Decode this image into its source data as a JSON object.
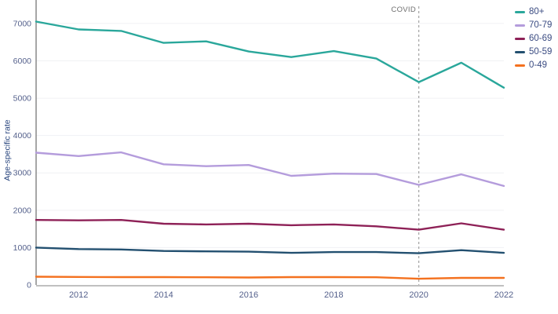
{
  "chart_data": {
    "type": "line",
    "title": "",
    "ylabel": "Age-specific rate",
    "xlabel": "",
    "x": [
      2011,
      2012,
      2013,
      2014,
      2015,
      2016,
      2017,
      2018,
      2019,
      2020,
      2021,
      2022
    ],
    "xlim": [
      2011,
      2022
    ],
    "ylim": [
      0,
      7460
    ],
    "x_ticks": [
      2012,
      2014,
      2016,
      2018,
      2020,
      2022
    ],
    "y_ticks": [
      0,
      1000,
      2000,
      3000,
      4000,
      5000,
      6000,
      7000
    ],
    "grid": "horizontal",
    "legend_position": "top-right",
    "series": [
      {
        "name": "80+",
        "color": "#2aa79b",
        "values": [
          7050,
          6840,
          6800,
          6480,
          6520,
          6250,
          6100,
          6260,
          6060,
          5430,
          5950,
          5280
        ]
      },
      {
        "name": "70-79",
        "color": "#b49cdc",
        "values": [
          3540,
          3450,
          3550,
          3230,
          3180,
          3210,
          2920,
          2980,
          2970,
          2680,
          2960,
          2650
        ]
      },
      {
        "name": "60-69",
        "color": "#8e2157",
        "values": [
          1740,
          1730,
          1740,
          1640,
          1620,
          1640,
          1600,
          1620,
          1570,
          1480,
          1650,
          1480
        ]
      },
      {
        "name": "50-59",
        "color": "#235070",
        "values": [
          1000,
          960,
          950,
          910,
          900,
          890,
          860,
          880,
          880,
          850,
          930,
          860
        ]
      },
      {
        "name": "0-49",
        "color": "#f4711f",
        "values": [
          220,
          215,
          210,
          210,
          205,
          200,
          210,
          210,
          205,
          165,
          190,
          190
        ]
      }
    ],
    "annotations": [
      {
        "type": "vline",
        "x": 2020,
        "label": "COVID",
        "style": "dashed",
        "color": "#a3a3a3"
      }
    ]
  },
  "style": {
    "grid_color": "#f0f1f4",
    "y_axis_color": "#6b6b6b",
    "x_axis_color": "#9b9b9b",
    "tick_color": "#55618c"
  }
}
